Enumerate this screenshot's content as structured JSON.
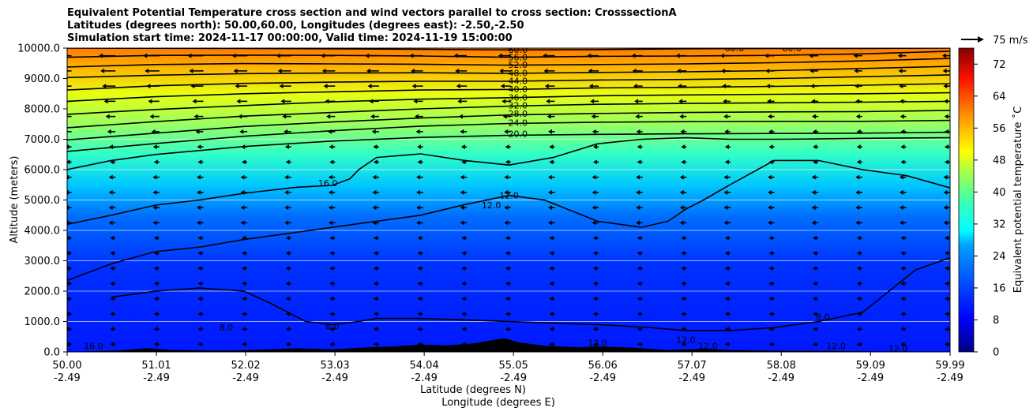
{
  "chart_data": {
    "type": "heatmap",
    "title_lines": [
      "Equivalent Potential Temperature cross section and wind vectors parallel to cross section: CrosssectionA",
      "Latitudes (degrees north): 50.00,60.00, Longitudes (degrees east): -2.50,-2.50",
      "Simulation start time: 2024-11-17 00:00:00, Valid time: 2024-11-19 15:00:00"
    ],
    "ylabel": "Altitude (meters)",
    "xlabel_lat": "Latitude (degrees N)",
    "xlabel_lon": "Longitude (degrees E)",
    "xlim": [
      50.0,
      59.99
    ],
    "ylim": [
      0,
      10000
    ],
    "x_ticks": [
      {
        "lat": "50.00",
        "lon": "-2.49",
        "value": 50.0
      },
      {
        "lat": "51.01",
        "lon": "-2.49",
        "value": 51.01
      },
      {
        "lat": "52.02",
        "lon": "-2.49",
        "value": 52.02
      },
      {
        "lat": "53.03",
        "lon": "-2.49",
        "value": 53.03
      },
      {
        "lat": "54.04",
        "lon": "-2.49",
        "value": 54.04
      },
      {
        "lat": "55.05",
        "lon": "-2.49",
        "value": 55.05
      },
      {
        "lat": "56.06",
        "lon": "-2.49",
        "value": 56.06
      },
      {
        "lat": "57.07",
        "lon": "-2.49",
        "value": 57.07
      },
      {
        "lat": "58.08",
        "lon": "-2.49",
        "value": 58.08
      },
      {
        "lat": "59.09",
        "lon": "-2.49",
        "value": 59.09
      },
      {
        "lat": "59.99",
        "lon": "-2.49",
        "value": 59.99
      }
    ],
    "y_ticks": [
      {
        "label": "0.0",
        "value": 0
      },
      {
        "label": "1000.0",
        "value": 1000
      },
      {
        "label": "2000.0",
        "value": 2000
      },
      {
        "label": "3000.0",
        "value": 3000
      },
      {
        "label": "4000.0",
        "value": 4000
      },
      {
        "label": "5000.0",
        "value": 5000
      },
      {
        "label": "6000.0",
        "value": 6000
      },
      {
        "label": "7000.0",
        "value": 7000
      },
      {
        "label": "8000.0",
        "value": 8000
      },
      {
        "label": "9000.0",
        "value": 9000
      },
      {
        "label": "10000.0",
        "value": 10000
      }
    ],
    "gridlines_y": [
      1000,
      2000,
      3000,
      4000,
      5000,
      6000,
      7000
    ],
    "colorbar": {
      "label": "Equivalent potential temperature ˚C",
      "range": [
        0,
        76
      ],
      "ticks": [
        {
          "label": "0",
          "value": 0
        },
        {
          "label": "8",
          "value": 8
        },
        {
          "label": "16",
          "value": 16
        },
        {
          "label": "24",
          "value": 24
        },
        {
          "label": "32",
          "value": 32
        },
        {
          "label": "40",
          "value": 40
        },
        {
          "label": "48",
          "value": 48
        },
        {
          "label": "56",
          "value": 56
        },
        {
          "label": "64",
          "value": 64
        },
        {
          "label": "72",
          "value": 72
        }
      ]
    },
    "quiver_key": {
      "label": "75 m/s"
    },
    "contour_labels": [
      {
        "text": "60.0",
        "lat": 55.1,
        "alt": 9950
      },
      {
        "text": "56.0",
        "lat": 55.1,
        "alt": 9700
      },
      {
        "text": "52.0",
        "lat": 55.1,
        "alt": 9450
      },
      {
        "text": "48.0",
        "lat": 55.1,
        "alt": 9180
      },
      {
        "text": "44.0",
        "lat": 55.1,
        "alt": 8920
      },
      {
        "text": "40.0",
        "lat": 55.1,
        "alt": 8650
      },
      {
        "text": "36.0",
        "lat": 55.1,
        "alt": 8380
      },
      {
        "text": "32.0",
        "lat": 55.1,
        "alt": 8120
      },
      {
        "text": "28.0",
        "lat": 55.1,
        "alt": 7850
      },
      {
        "text": "24.0",
        "lat": 55.1,
        "alt": 7550
      },
      {
        "text": "20.0",
        "lat": 55.1,
        "alt": 7180
      },
      {
        "text": "60.0",
        "lat": 57.55,
        "alt": 10000
      },
      {
        "text": "60.0",
        "lat": 58.2,
        "alt": 10000
      },
      {
        "text": "16.0",
        "lat": 52.95,
        "alt": 5560
      },
      {
        "text": "12.0",
        "lat": 55.0,
        "alt": 5160
      },
      {
        "text": "12.0",
        "lat": 54.8,
        "alt": 4830
      },
      {
        "text": "8.0",
        "lat": 58.55,
        "alt": 1150
      },
      {
        "text": "8.0",
        "lat": 51.8,
        "alt": 800
      },
      {
        "text": "8.0",
        "lat": 53.0,
        "alt": 850
      },
      {
        "text": "16.0",
        "lat": 50.3,
        "alt": 200
      },
      {
        "text": "12.0",
        "lat": 57.0,
        "alt": 400
      },
      {
        "text": "12.0",
        "lat": 57.25,
        "alt": 200
      },
      {
        "text": "12.0",
        "lat": 56.0,
        "alt": 300
      },
      {
        "text": "12.0",
        "lat": 58.7,
        "alt": 200
      },
      {
        "text": "12.0",
        "lat": 59.4,
        "alt": 100
      }
    ],
    "contour_lines": [
      {
        "level": 60,
        "points": [
          [
            50.0,
            10000
          ],
          [
            52.0,
            9990
          ],
          [
            54.0,
            9960
          ],
          [
            55.0,
            9940
          ],
          [
            56.0,
            9950
          ],
          [
            57.0,
            9980
          ],
          [
            58.0,
            9990
          ],
          [
            59.0,
            9990
          ],
          [
            59.99,
            10000
          ]
        ]
      },
      {
        "level": 56,
        "points": [
          [
            50.0,
            9700
          ],
          [
            51.0,
            9760
          ],
          [
            52.0,
            9770
          ],
          [
            53.0,
            9760
          ],
          [
            54.0,
            9740
          ],
          [
            55.0,
            9700
          ],
          [
            56.0,
            9730
          ],
          [
            57.0,
            9740
          ],
          [
            58.0,
            9760
          ],
          [
            59.0,
            9810
          ],
          [
            59.99,
            9900
          ]
        ]
      },
      {
        "level": 52,
        "points": [
          [
            50.0,
            9380
          ],
          [
            51.0,
            9460
          ],
          [
            52.0,
            9490
          ],
          [
            53.0,
            9480
          ],
          [
            54.0,
            9470
          ],
          [
            55.0,
            9440
          ],
          [
            56.0,
            9460
          ],
          [
            57.0,
            9480
          ],
          [
            58.0,
            9520
          ],
          [
            59.0,
            9580
          ],
          [
            59.99,
            9660
          ]
        ]
      },
      {
        "level": 48,
        "points": [
          [
            50.0,
            9030
          ],
          [
            51.0,
            9110
          ],
          [
            52.0,
            9160
          ],
          [
            53.0,
            9180
          ],
          [
            54.0,
            9190
          ],
          [
            55.0,
            9170
          ],
          [
            56.0,
            9200
          ],
          [
            57.0,
            9220
          ],
          [
            58.0,
            9260
          ],
          [
            59.0,
            9330
          ],
          [
            59.99,
            9400
          ]
        ]
      },
      {
        "level": 44,
        "points": [
          [
            50.0,
            8620
          ],
          [
            51.0,
            8760
          ],
          [
            52.0,
            8840
          ],
          [
            53.0,
            8880
          ],
          [
            54.0,
            8910
          ],
          [
            55.0,
            8910
          ],
          [
            56.0,
            8950
          ],
          [
            57.0,
            8970
          ],
          [
            58.0,
            9000
          ],
          [
            59.0,
            9060
          ],
          [
            59.99,
            9120
          ]
        ]
      },
      {
        "level": 40,
        "points": [
          [
            50.0,
            8250
          ],
          [
            51.0,
            8400
          ],
          [
            52.0,
            8500
          ],
          [
            53.0,
            8560
          ],
          [
            54.0,
            8620
          ],
          [
            55.0,
            8640
          ],
          [
            56.0,
            8690
          ],
          [
            57.0,
            8710
          ],
          [
            58.0,
            8740
          ],
          [
            59.0,
            8780
          ],
          [
            59.99,
            8830
          ]
        ]
      },
      {
        "level": 36,
        "points": [
          [
            50.0,
            7820
          ],
          [
            51.0,
            7980
          ],
          [
            52.0,
            8110
          ],
          [
            53.0,
            8230
          ],
          [
            54.0,
            8320
          ],
          [
            55.0,
            8370
          ],
          [
            56.0,
            8430
          ],
          [
            57.0,
            8460
          ],
          [
            58.0,
            8480
          ],
          [
            59.0,
            8500
          ],
          [
            59.99,
            8530
          ]
        ]
      },
      {
        "level": 32,
        "points": [
          [
            50.0,
            7380
          ],
          [
            51.0,
            7580
          ],
          [
            52.0,
            7760
          ],
          [
            53.0,
            7880
          ],
          [
            54.0,
            8000
          ],
          [
            55.0,
            8090
          ],
          [
            56.0,
            8150
          ],
          [
            57.0,
            8180
          ],
          [
            58.0,
            8200
          ],
          [
            59.0,
            8220
          ],
          [
            59.99,
            8250
          ]
        ]
      },
      {
        "level": 28,
        "points": [
          [
            50.0,
            6980
          ],
          [
            51.0,
            7200
          ],
          [
            52.0,
            7420
          ],
          [
            53.0,
            7570
          ],
          [
            54.0,
            7700
          ],
          [
            55.0,
            7800
          ],
          [
            56.0,
            7850
          ],
          [
            57.0,
            7880
          ],
          [
            58.0,
            7900
          ],
          [
            59.0,
            7910
          ],
          [
            59.99,
            7950
          ]
        ]
      },
      {
        "level": 24,
        "points": [
          [
            50.0,
            6600
          ],
          [
            51.0,
            6860
          ],
          [
            52.0,
            7100
          ],
          [
            53.0,
            7280
          ],
          [
            54.0,
            7430
          ],
          [
            55.0,
            7520
          ],
          [
            56.0,
            7560
          ],
          [
            57.0,
            7580
          ],
          [
            58.0,
            7590
          ],
          [
            59.0,
            7590
          ],
          [
            59.99,
            7620
          ]
        ]
      },
      {
        "level": 20,
        "points": [
          [
            50.0,
            6000
          ],
          [
            50.5,
            6300
          ],
          [
            51.0,
            6500
          ],
          [
            52.0,
            6760
          ],
          [
            53.0,
            6940
          ],
          [
            54.0,
            7060
          ],
          [
            55.0,
            7130
          ],
          [
            56.0,
            7160
          ],
          [
            57.0,
            7180
          ],
          [
            58.0,
            7190
          ],
          [
            59.0,
            7200
          ],
          [
            59.99,
            7230
          ]
        ]
      },
      {
        "level": 16,
        "points": [
          [
            50.0,
            4200
          ],
          [
            50.5,
            4500
          ],
          [
            51.0,
            4830
          ],
          [
            51.5,
            5000
          ],
          [
            52.0,
            5220
          ],
          [
            52.6,
            5420
          ],
          [
            53.0,
            5480
          ],
          [
            53.2,
            5700
          ],
          [
            53.3,
            6000
          ],
          [
            53.5,
            6400
          ],
          [
            54.0,
            6520
          ],
          [
            54.5,
            6300
          ],
          [
            55.0,
            6150
          ],
          [
            55.5,
            6400
          ],
          [
            56.0,
            6850
          ],
          [
            56.5,
            7000
          ],
          [
            57.0,
            7050
          ],
          [
            57.5,
            7000
          ],
          [
            58.0,
            7000
          ],
          [
            58.5,
            7010
          ],
          [
            59.0,
            7030
          ],
          [
            59.99,
            7050
          ]
        ]
      },
      {
        "level": 12,
        "points": [
          [
            50.0,
            2350
          ],
          [
            50.5,
            2900
          ],
          [
            51.0,
            3300
          ],
          [
            51.5,
            3450
          ],
          [
            52.0,
            3700
          ],
          [
            52.5,
            3900
          ],
          [
            53.0,
            4100
          ],
          [
            53.5,
            4300
          ],
          [
            54.0,
            4500
          ],
          [
            54.5,
            4850
          ],
          [
            55.0,
            5150
          ],
          [
            55.4,
            5000
          ],
          [
            56.0,
            4300
          ],
          [
            56.5,
            4100
          ],
          [
            56.8,
            4300
          ],
          [
            57.0,
            4700
          ],
          [
            57.2,
            5000
          ],
          [
            57.5,
            5500
          ],
          [
            58.0,
            6300
          ],
          [
            58.5,
            6300
          ],
          [
            59.0,
            6000
          ],
          [
            59.5,
            5800
          ],
          [
            59.99,
            5400
          ]
        ]
      },
      {
        "level": 8,
        "points": [
          [
            50.5,
            1800
          ],
          [
            51.0,
            2000
          ],
          [
            51.5,
            2100
          ],
          [
            52.0,
            2000
          ],
          [
            52.3,
            1600
          ],
          [
            52.5,
            1300
          ],
          [
            52.7,
            1000
          ],
          [
            53.0,
            900
          ],
          [
            53.3,
            1000
          ],
          [
            53.5,
            1100
          ],
          [
            54.0,
            1100
          ],
          [
            55.0,
            1000
          ],
          [
            56.0,
            900
          ],
          [
            56.6,
            800
          ],
          [
            57.0,
            700
          ],
          [
            57.5,
            700
          ],
          [
            58.0,
            800
          ],
          [
            58.5,
            1000
          ],
          [
            59.0,
            1300
          ],
          [
            59.3,
            2000
          ],
          [
            59.6,
            2700
          ],
          [
            59.99,
            3100
          ]
        ]
      }
    ],
    "terrain": {
      "color": "#000000",
      "points": [
        [
          50.0,
          0
        ],
        [
          50.6,
          50
        ],
        [
          50.9,
          120
        ],
        [
          51.2,
          60
        ],
        [
          51.8,
          40
        ],
        [
          52.3,
          80
        ],
        [
          52.6,
          120
        ],
        [
          53.0,
          80
        ],
        [
          53.4,
          150
        ],
        [
          53.7,
          180
        ],
        [
          54.0,
          240
        ],
        [
          54.3,
          210
        ],
        [
          54.6,
          280
        ],
        [
          54.8,
          380
        ],
        [
          54.95,
          450
        ],
        [
          55.1,
          320
        ],
        [
          55.4,
          200
        ],
        [
          55.8,
          150
        ],
        [
          56.0,
          180
        ],
        [
          56.4,
          140
        ],
        [
          56.8,
          60
        ],
        [
          57.2,
          100
        ],
        [
          57.5,
          60
        ],
        [
          58.0,
          40
        ],
        [
          58.5,
          30
        ],
        [
          59.0,
          20
        ],
        [
          59.99,
          0
        ]
      ]
    },
    "wind_vectors_description": "westward-pointing arrows parallel to cross section"
  }
}
